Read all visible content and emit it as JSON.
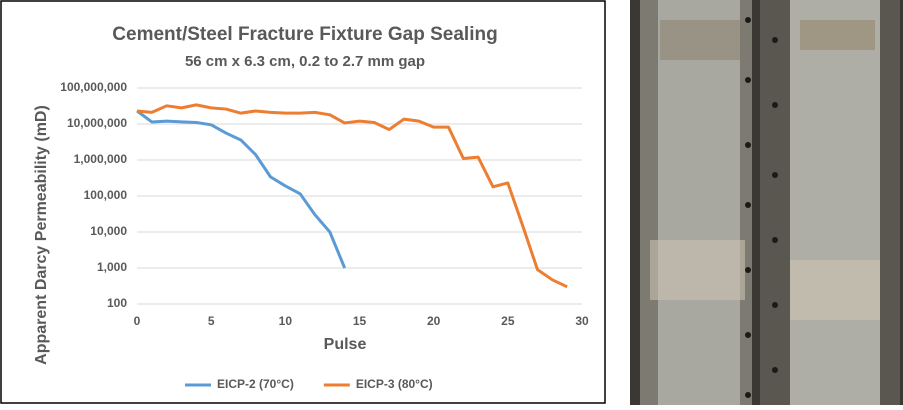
{
  "chart_data": {
    "type": "line",
    "title": "Cement/Steel Fracture Fixture Gap Sealing",
    "subtitle": "56 cm x 6.3 cm, 0.2 to 2.7 mm gap",
    "xlabel": "Pulse",
    "ylabel": "Apparent Darcy Permeability (mD)",
    "x": [
      0,
      1,
      2,
      3,
      4,
      5,
      6,
      7,
      8,
      9,
      10,
      11,
      12,
      13,
      14,
      15,
      16,
      17,
      18,
      19,
      20,
      21,
      22,
      23,
      24,
      25,
      26,
      27,
      28,
      29
    ],
    "series": [
      {
        "name": "EICP-2 (70°C)",
        "color": "#5b9bd5",
        "values": [
          23000000,
          11400000,
          12000000,
          11500000,
          11000000,
          9500000,
          5600000,
          3600000,
          1400000,
          340000,
          190000,
          115000,
          30000,
          10000,
          1000,
          null,
          null,
          null,
          null,
          null,
          null,
          null,
          null,
          null,
          null,
          null,
          null,
          null,
          null,
          null
        ]
      },
      {
        "name": "EICP-3 (80°C)",
        "color": "#ed7d31",
        "values": [
          23000000,
          21000000,
          32000000,
          28000000,
          34000000,
          28000000,
          26000000,
          20000000,
          23000000,
          21000000,
          20000000,
          20000000,
          21000000,
          18000000,
          10700000,
          12000000,
          11000000,
          7000000,
          13700000,
          12000000,
          8200000,
          8200000,
          1100000,
          1200000,
          180000,
          230000,
          15000,
          900,
          470,
          300
        ]
      }
    ],
    "xlim": [
      0,
      30
    ],
    "xticks": [
      0,
      5,
      10,
      15,
      20,
      25,
      30
    ],
    "ylim": [
      100,
      100000000
    ],
    "yscale": "log",
    "yticks": [
      100,
      {
        "value": 1000,
        "label": "1,000"
      },
      {
        "value": 10000,
        "label": "10,000"
      },
      {
        "value": 100000,
        "label": "100,000"
      },
      {
        "value": 1000000,
        "label": "1,000,000"
      },
      {
        "value": 10000000,
        "label": "10,000,000"
      },
      {
        "value": 100000000,
        "label": "100,000,000"
      }
    ],
    "grid": true,
    "legend": "bottom"
  }
}
